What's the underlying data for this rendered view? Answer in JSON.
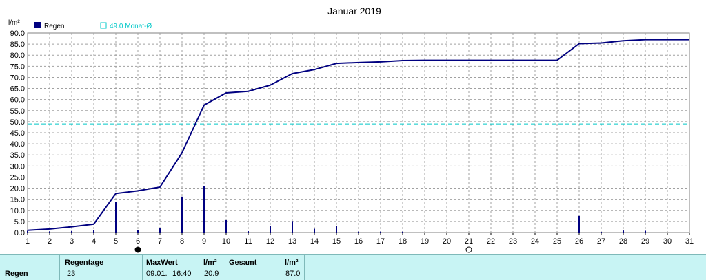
{
  "chart_data": {
    "type": "bar+line",
    "title": "Januar 2019",
    "ylabel": "l/m²",
    "ylim": [
      0,
      90
    ],
    "yticks": [
      "0.0",
      "5.0",
      "10.0",
      "15.0",
      "20.0",
      "25.0",
      "30.0",
      "35.0",
      "40.0",
      "45.0",
      "50.0",
      "55.0",
      "60.0",
      "65.0",
      "70.0",
      "75.0",
      "80.0",
      "85.0",
      "90.0"
    ],
    "xticks": [
      "1",
      "2",
      "3",
      "4",
      "5",
      "6",
      "7",
      "8",
      "9",
      "10",
      "11",
      "12",
      "13",
      "14",
      "15",
      "16",
      "17",
      "18",
      "19",
      "20",
      "21",
      "22",
      "23",
      "24",
      "25",
      "26",
      "27",
      "28",
      "29",
      "30",
      "31"
    ],
    "grid": true,
    "legend": [
      {
        "label": "Regen",
        "color": "#000080"
      },
      {
        "label": "49.0 Monat-Ø",
        "color": "#00c8c8"
      }
    ],
    "monthly_average": 49.0,
    "daily_rain": {
      "days": [
        1,
        2,
        3,
        4,
        5,
        6,
        7,
        8,
        9,
        10,
        11,
        12,
        13,
        14,
        15,
        16,
        17,
        18,
        19,
        20,
        21,
        22,
        23,
        24,
        25,
        26,
        27,
        28,
        29,
        30,
        31
      ],
      "values": [
        0.8,
        0.5,
        0.7,
        1.1,
        13.9,
        1.2,
        1.9,
        16.2,
        20.9,
        5.6,
        0.6,
        2.9,
        5.2,
        1.7,
        2.8,
        0.4,
        0.4,
        0.4,
        0,
        0,
        0,
        0,
        0,
        0,
        0,
        7.5,
        0.3,
        0.9,
        0.8,
        0,
        0
      ]
    },
    "cumulative": {
      "days": [
        1,
        2,
        3,
        4,
        5,
        6,
        7,
        8,
        9,
        10,
        11,
        12,
        13,
        14,
        15,
        16,
        17,
        18,
        19,
        20,
        21,
        22,
        23,
        24,
        25,
        26,
        27,
        28,
        29,
        30,
        31
      ],
      "values": [
        1.0,
        1.6,
        2.6,
        3.8,
        17.6,
        18.8,
        20.5,
        36.0,
        57.5,
        63.0,
        63.7,
        66.5,
        71.7,
        73.5,
        76.3,
        76.7,
        77.0,
        77.6,
        77.7,
        77.7,
        77.7,
        77.7,
        77.7,
        77.7,
        77.7,
        85.2,
        85.5,
        86.5,
        87.0,
        87.0,
        87.0
      ]
    },
    "moon_markers": [
      {
        "day": 6,
        "phase": "new-moon"
      },
      {
        "day": 21,
        "phase": "full-moon"
      }
    ]
  },
  "table": {
    "row_label": "Regen",
    "regentage_header": "Regentage",
    "regentage_value": "23",
    "maxwert_header": "MaxWert",
    "maxwert_unit": "l/m²",
    "maxwert_date": "09.01.",
    "maxwert_time": "16:40",
    "maxwert_value": "20.9",
    "gesamt_header": "Gesamt",
    "gesamt_unit": "l/m²",
    "gesamt_value": "87.0"
  }
}
